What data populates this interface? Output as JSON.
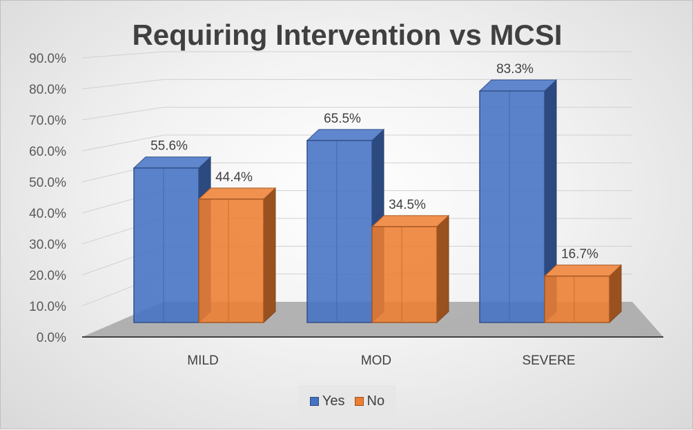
{
  "chart_data": {
    "type": "bar",
    "title": "Requiring Intervention vs MCSI",
    "categories": [
      "MILD",
      "MOD",
      "SEVERE"
    ],
    "series": [
      {
        "name": "Yes",
        "values": [
          55.6,
          65.5,
          83.3
        ],
        "labels": [
          "55.6%",
          "65.5%",
          "83.3%"
        ],
        "color": "#4472c4"
      },
      {
        "name": "No",
        "values": [
          44.4,
          34.5,
          16.7
        ],
        "labels": [
          "44.4%",
          "34.5%",
          "16.7%"
        ],
        "color": "#ed7d31"
      }
    ],
    "yticks": [
      "0.0%",
      "10.0%",
      "20.0%",
      "30.0%",
      "40.0%",
      "50.0%",
      "60.0%",
      "70.0%",
      "80.0%",
      "90.0%"
    ],
    "ylim": [
      0,
      90
    ],
    "grid": true,
    "legend_position": "bottom",
    "style": "3d-clustered-column"
  }
}
